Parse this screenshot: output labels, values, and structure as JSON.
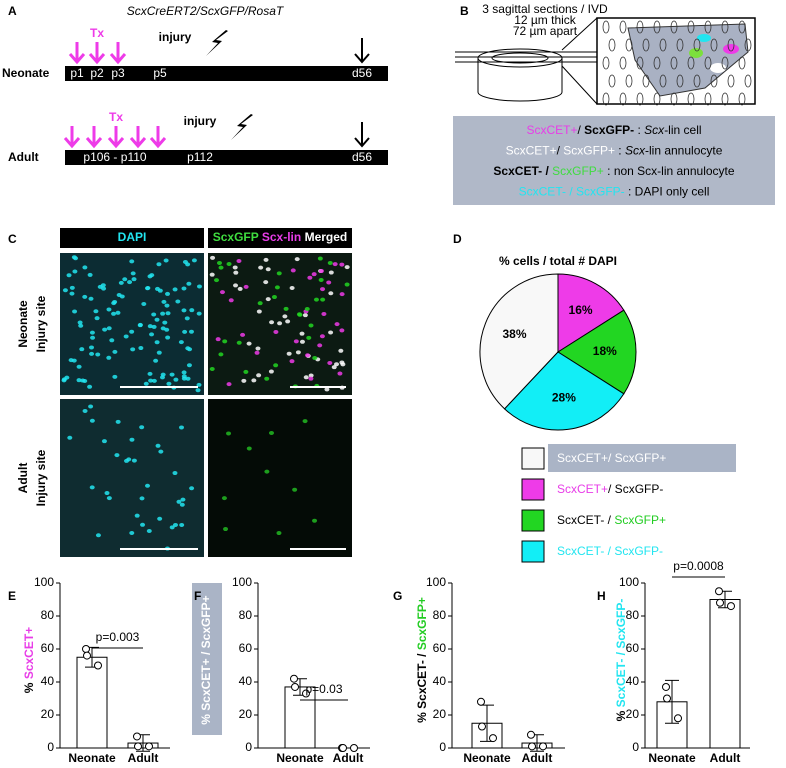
{
  "panel_a": {
    "label": "A",
    "title": "ScxCreERT2/ScxGFP/RosaT",
    "rows": [
      {
        "name": "Neonate",
        "tx": "Tx",
        "injury": "injury",
        "timepoints": [
          "p1",
          "p2",
          "p3",
          "p5",
          "d56"
        ]
      },
      {
        "name": "Adult",
        "tx": "Tx",
        "injury": "injury",
        "timepoints": [
          "p106 - p110",
          "p112",
          "d56"
        ]
      }
    ]
  },
  "panel_b": {
    "label": "B",
    "notes": [
      "3 sagittal sections / IVD",
      "12 µm thick",
      "72 µm apart"
    ],
    "legend": [
      [
        {
          "text": "ScxCET+",
          "color": "#e83de8"
        },
        {
          "text": "/ "
        },
        {
          "text": "ScxGFP-",
          "bold": true
        },
        {
          "text": " : "
        },
        {
          "text": "Scx",
          "italic": true
        },
        {
          "text": "-lin cell"
        }
      ],
      [
        {
          "text": "ScxCET+",
          "color": "#ffffff"
        },
        {
          "text": "/ "
        },
        {
          "text": "ScxGFP+",
          "color": "#ffffff"
        },
        {
          "text": " : "
        },
        {
          "text": "Scx",
          "italic": true
        },
        {
          "text": "-lin annulocyte"
        }
      ],
      [
        {
          "text": "ScxCET- /",
          "bold": true
        },
        {
          "text": " "
        },
        {
          "text": "ScxGFP+",
          "color": "#3fdc3f"
        },
        {
          "text": " : non Scx-lin annulocyte"
        }
      ],
      [
        {
          "text": "ScxCET- / ScxGFP-",
          "color": "#22e5f0"
        },
        {
          "text": " : DAPI only cell"
        }
      ]
    ]
  },
  "panel_c": {
    "label": "C",
    "headers": [
      [
        {
          "text": "DAPI",
          "color": "#22e5f0"
        }
      ],
      [
        {
          "text": "ScxGFP",
          "color": "#3fdc3f"
        },
        {
          "text": " "
        },
        {
          "text": "Scx-lin",
          "color": "#e83de8"
        },
        {
          "text": " "
        },
        {
          "text": "Merged",
          "color": "#ffffff"
        }
      ]
    ],
    "rows": [
      [
        "Neonate",
        "Injury site"
      ],
      [
        "Adult",
        "Injury site"
      ]
    ]
  },
  "chart_data": [
    {
      "type": "pie",
      "panel": "D",
      "title": "% cells / total # DAPI",
      "values": [
        38,
        16,
        18,
        28
      ],
      "value_labels": [
        "38%",
        "16%",
        "18%",
        "28%"
      ],
      "colors": [
        "#f8f8f8",
        "#ee3be8",
        "#22d622",
        "#12eef6"
      ],
      "legend": [
        [
          {
            "text": "ScxCET+/ ScxGFP+",
            "color": "#ffffff"
          }
        ],
        [
          {
            "text": "ScxCET+",
            "color": "#e83de8"
          },
          {
            "text": "/ ScxGFP-"
          }
        ],
        [
          {
            "text": "ScxCET- / "
          },
          {
            "text": "ScxGFP+",
            "color": "#22cc22"
          }
        ],
        [
          {
            "text": "ScxCET- / ScxGFP-",
            "color": "#22e5f0"
          }
        ]
      ]
    },
    {
      "type": "bar",
      "panel": "E",
      "ylabel": [
        {
          "text": "% "
        },
        {
          "text": "ScxCET+",
          "color": "#e83de8"
        }
      ],
      "categories": [
        "Neonate",
        "Adult"
      ],
      "values": [
        55,
        3
      ],
      "errors": [
        6,
        5
      ],
      "points": [
        [
          60,
          56,
          50
        ],
        [
          7,
          1,
          1
        ]
      ],
      "annotation": "p=0.003",
      "ylim": [
        0,
        100
      ],
      "yticks": [
        0,
        20,
        40,
        60,
        80,
        100
      ],
      "color": "#ffffff"
    },
    {
      "type": "bar",
      "panel": "F",
      "ylabel": [
        {
          "text": "% ScxCET+ / ScxGFP+",
          "color": "#ffffff"
        }
      ],
      "categories": [
        "Neonate",
        "Adult"
      ],
      "values": [
        37,
        0
      ],
      "errors": [
        5,
        0
      ],
      "points": [
        [
          42,
          37,
          33
        ],
        [
          0,
          0,
          0
        ]
      ],
      "annotation": "p=0.03",
      "ylim": [
        0,
        100
      ],
      "yticks": [
        0,
        20,
        40,
        60,
        80,
        100
      ],
      "color": "#ffffff"
    },
    {
      "type": "bar",
      "panel": "G",
      "ylabel": [
        {
          "text": "% ScxCET- / "
        },
        {
          "text": "ScxGFP+",
          "color": "#22cc22"
        }
      ],
      "categories": [
        "Neonate",
        "Adult"
      ],
      "values": [
        15,
        3
      ],
      "errors": [
        11,
        5
      ],
      "points": [
        [
          28,
          13,
          6
        ],
        [
          8,
          1,
          1
        ]
      ],
      "ylim": [
        0,
        100
      ],
      "yticks": [
        0,
        20,
        40,
        60,
        80,
        100
      ],
      "color": "#ffffff"
    },
    {
      "type": "bar",
      "panel": "H",
      "ylabel": [
        {
          "text": "% "
        },
        {
          "text": "ScxCET- / ScxGFP-",
          "color": "#22e5f0"
        }
      ],
      "categories": [
        "Neonate",
        "Adult"
      ],
      "values": [
        28,
        90
      ],
      "errors": [
        13,
        5
      ],
      "points": [
        [
          37,
          30,
          18
        ],
        [
          95,
          88,
          86
        ]
      ],
      "annotation": "p=0.0008",
      "ylim": [
        0,
        100
      ],
      "yticks": [
        0,
        20,
        40,
        60,
        80,
        100
      ],
      "color": "#ffffff"
    }
  ]
}
